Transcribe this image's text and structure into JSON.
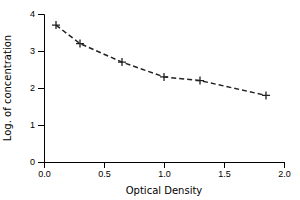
{
  "chart_data": {
    "type": "line",
    "x": [
      0.1,
      0.3,
      0.65,
      1.0,
      1.3,
      1.85
    ],
    "values": [
      3.7,
      3.2,
      2.7,
      2.3,
      2.2,
      1.8
    ],
    "color": "#222222",
    "marker": "plus",
    "line_style": "dashed",
    "xlabel": "Optical Density",
    "ylabel": "Log. of concentration",
    "xlim": [
      0,
      2
    ],
    "ylim": [
      0,
      4
    ],
    "xticks": [
      {
        "value": 0,
        "label": "0.0"
      },
      0.5,
      {
        "value": 1,
        "label": "1.0"
      },
      1.5,
      {
        "value": 2,
        "label": "2.0"
      }
    ],
    "yticks": [
      0,
      1,
      2,
      3,
      4
    ],
    "grid": false
  }
}
